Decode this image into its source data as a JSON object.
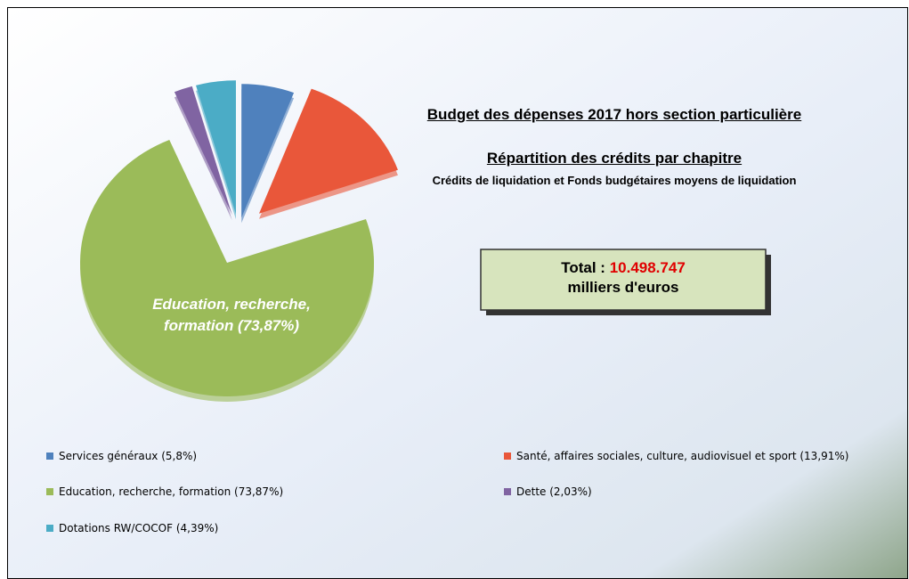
{
  "chart_data": {
    "type": "pie",
    "title": "Budget des dépenses 2017 hors section particulière",
    "title2": "Répartition des crédits par chapitre",
    "subtitle": "Crédits de liquidation et Fonds budgétaires moyens de liquidation",
    "total_label": "Total :",
    "total_value": "10.498.747",
    "total_unit": "milliers d'euros",
    "categories": [
      "Services généraux  (5,8%)",
      "Santé, affaires sociales, culture, audiovisuel et sport  (13,91%)",
      "Education, recherche, formation  (73,87%)",
      "Dette  (2,03%)",
      "Dotations RW/COCOF  (4,39%)"
    ],
    "values": [
      5.8,
      13.91,
      73.87,
      2.03,
      4.39
    ],
    "colors": [
      "#4f81bd",
      "#e9573a",
      "#9bbb59",
      "#8064a2",
      "#4bacc6"
    ],
    "data_label": "Education, recherche, formation (73,87%)"
  }
}
